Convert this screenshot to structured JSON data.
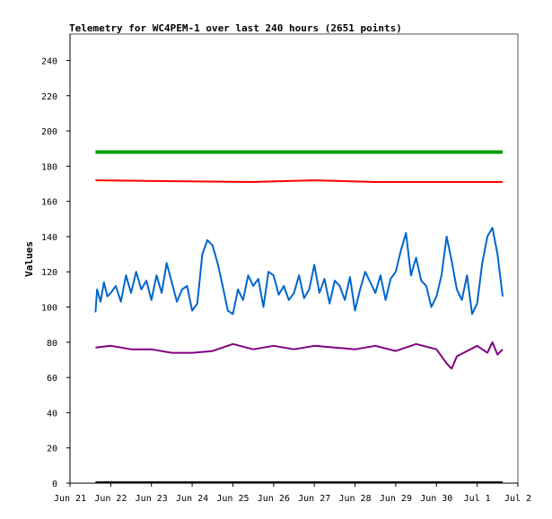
{
  "chart_data": {
    "type": "line",
    "title": "Telemetry for WC4PEM-1 over last 240 hours (2651 points)",
    "xlabel": "",
    "ylabel": "Values",
    "ylim": [
      0,
      255
    ],
    "yticks": [
      0,
      20,
      40,
      60,
      80,
      100,
      120,
      140,
      160,
      180,
      200,
      220,
      240
    ],
    "xlim": [
      "2025-06-21",
      "2025-07-02"
    ],
    "xticks": [
      {
        "date": "2025-06-21",
        "label": "Jun 21"
      },
      {
        "date": "2025-06-22",
        "label": "Jun 22"
      },
      {
        "date": "2025-06-23",
        "label": "Jun 23"
      },
      {
        "date": "2025-06-24",
        "label": "Jun 24"
      },
      {
        "date": "2025-06-25",
        "label": "Jun 25"
      },
      {
        "date": "2025-06-26",
        "label": "Jun 26"
      },
      {
        "date": "2025-06-27",
        "label": "Jun 27"
      },
      {
        "date": "2025-06-28",
        "label": "Jun 28"
      },
      {
        "date": "2025-06-29",
        "label": "Jun 29"
      },
      {
        "date": "2025-06-30",
        "label": "Jun 30"
      },
      {
        "date": "2025-07-01",
        "label": "Jul 1"
      },
      {
        "date": "2025-07-02",
        "label": "Jul 2"
      }
    ],
    "grid": false,
    "legend": "none",
    "series": [
      {
        "color": "#00a000",
        "x": [
          "2025-06-21 15:00",
          "2025-07-01 15:00"
        ],
        "values": [
          188,
          188
        ]
      },
      {
        "color": "#ff0000",
        "x": [
          "2025-06-21 15:00",
          "2025-06-23 12:00",
          "2025-06-25 12:00",
          "2025-06-27 00:00",
          "2025-06-28 12:00",
          "2025-06-30 00:00",
          "2025-07-01 15:00"
        ],
        "values": [
          172,
          171.5,
          171,
          172,
          171,
          171,
          171
        ]
      },
      {
        "color": "#0066cc",
        "x": [
          "2025-06-21 15:00",
          "2025-06-21 16:00",
          "2025-06-21 18:00",
          "2025-06-21 20:00",
          "2025-06-21 22:00",
          "2025-06-22 00:00",
          "2025-06-22 03:00",
          "2025-06-22 06:00",
          "2025-06-22 09:00",
          "2025-06-22 12:00",
          "2025-06-22 15:00",
          "2025-06-22 18:00",
          "2025-06-22 21:00",
          "2025-06-23 00:00",
          "2025-06-23 03:00",
          "2025-06-23 06:00",
          "2025-06-23 09:00",
          "2025-06-23 12:00",
          "2025-06-23 15:00",
          "2025-06-23 18:00",
          "2025-06-23 21:00",
          "2025-06-24 00:00",
          "2025-06-24 03:00",
          "2025-06-24 06:00",
          "2025-06-24 09:00",
          "2025-06-24 12:00",
          "2025-06-24 15:00",
          "2025-06-24 18:00",
          "2025-06-24 21:00",
          "2025-06-25 00:00",
          "2025-06-25 03:00",
          "2025-06-25 06:00",
          "2025-06-25 09:00",
          "2025-06-25 12:00",
          "2025-06-25 15:00",
          "2025-06-25 18:00",
          "2025-06-25 21:00",
          "2025-06-26 00:00",
          "2025-06-26 03:00",
          "2025-06-26 06:00",
          "2025-06-26 09:00",
          "2025-06-26 12:00",
          "2025-06-26 15:00",
          "2025-06-26 18:00",
          "2025-06-26 21:00",
          "2025-06-27 00:00",
          "2025-06-27 03:00",
          "2025-06-27 06:00",
          "2025-06-27 09:00",
          "2025-06-27 12:00",
          "2025-06-27 15:00",
          "2025-06-27 18:00",
          "2025-06-27 21:00",
          "2025-06-28 00:00",
          "2025-06-28 03:00",
          "2025-06-28 06:00",
          "2025-06-28 09:00",
          "2025-06-28 12:00",
          "2025-06-28 15:00",
          "2025-06-28 18:00",
          "2025-06-28 21:00",
          "2025-06-29 00:00",
          "2025-06-29 03:00",
          "2025-06-29 06:00",
          "2025-06-29 09:00",
          "2025-06-29 12:00",
          "2025-06-29 15:00",
          "2025-06-29 18:00",
          "2025-06-29 21:00",
          "2025-06-30 00:00",
          "2025-06-30 03:00",
          "2025-06-30 06:00",
          "2025-06-30 09:00",
          "2025-06-30 12:00",
          "2025-06-30 15:00",
          "2025-06-30 18:00",
          "2025-06-30 21:00",
          "2025-07-01 00:00",
          "2025-07-01 03:00",
          "2025-07-01 06:00",
          "2025-07-01 09:00",
          "2025-07-01 12:00",
          "2025-07-01 15:00"
        ],
        "values": [
          97,
          110,
          103,
          114,
          106,
          108,
          112,
          103,
          118,
          108,
          120,
          110,
          115,
          104,
          118,
          108,
          125,
          114,
          103,
          110,
          112,
          98,
          102,
          130,
          138,
          135,
          125,
          112,
          98,
          96,
          110,
          104,
          118,
          112,
          116,
          100,
          120,
          118,
          107,
          112,
          104,
          108,
          118,
          105,
          110,
          124,
          108,
          116,
          102,
          115,
          112,
          104,
          117,
          98,
          110,
          120,
          114,
          108,
          118,
          104,
          116,
          120,
          132,
          142,
          118,
          128,
          115,
          112,
          100,
          106,
          118,
          140,
          126,
          110,
          104,
          118,
          96,
          102,
          125,
          140,
          145,
          130,
          106
        ]
      },
      {
        "color": "#800080",
        "x": [
          "2025-06-21 15:00",
          "2025-06-22 00:00",
          "2025-06-22 12:00",
          "2025-06-23 00:00",
          "2025-06-23 12:00",
          "2025-06-24 00:00",
          "2025-06-24 12:00",
          "2025-06-25 00:00",
          "2025-06-25 12:00",
          "2025-06-26 00:00",
          "2025-06-26 12:00",
          "2025-06-27 00:00",
          "2025-06-27 12:00",
          "2025-06-28 00:00",
          "2025-06-28 12:00",
          "2025-06-29 00:00",
          "2025-06-29 12:00",
          "2025-06-30 00:00",
          "2025-06-30 06:00",
          "2025-06-30 09:00",
          "2025-06-30 12:00",
          "2025-07-01 00:00",
          "2025-07-01 06:00",
          "2025-07-01 09:00",
          "2025-07-01 12:00",
          "2025-07-01 15:00"
        ],
        "values": [
          77,
          78,
          76,
          76,
          74,
          74,
          75,
          79,
          76,
          78,
          76,
          78,
          77,
          76,
          78,
          75,
          79,
          76,
          68,
          65,
          72,
          78,
          74,
          80,
          73,
          76
        ]
      },
      {
        "color": "#000000",
        "x": [
          "2025-06-21 15:00",
          "2025-07-01 15:00"
        ],
        "values": [
          0.5,
          0.5
        ]
      }
    ]
  }
}
